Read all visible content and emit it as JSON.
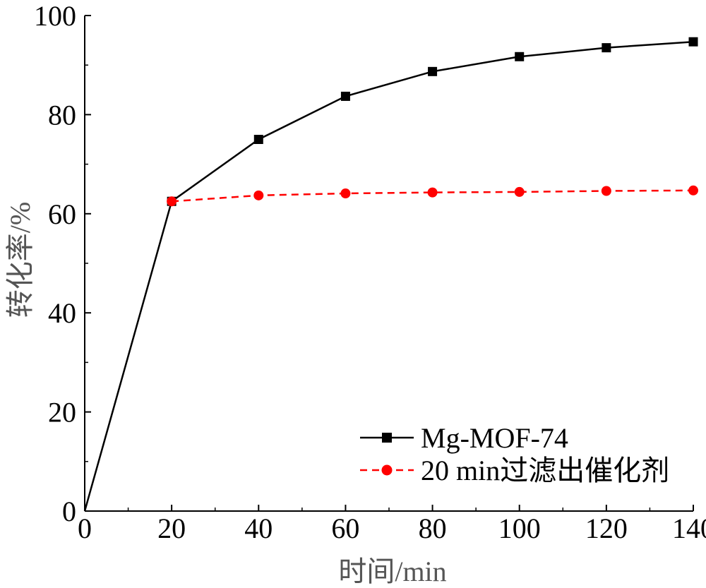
{
  "chart_data": {
    "type": "line",
    "title": "",
    "xlabel": "时间/min",
    "ylabel": "转化率/%",
    "xlim": [
      0,
      140
    ],
    "ylim": [
      0,
      100
    ],
    "x_ticks": [
      "0",
      "20",
      "40",
      "60",
      "80",
      "100",
      "120",
      "140"
    ],
    "y_ticks": [
      "0",
      "20",
      "40",
      "60",
      "80",
      "100"
    ],
    "grid": false,
    "legend_position": "bottom-right",
    "series": [
      {
        "name": "Mg-MOF-74",
        "color": "#000000",
        "line_style": "solid",
        "marker": "square",
        "x": [
          0,
          20,
          40,
          60,
          80,
          100,
          120,
          140
        ],
        "y": [
          0,
          62.5,
          75.0,
          83.7,
          88.7,
          91.7,
          93.5,
          94.7
        ]
      },
      {
        "name": "20 min过滤出催化剂",
        "color": "#ff0000",
        "line_style": "dashed",
        "marker": "circle",
        "x": [
          20,
          40,
          60,
          80,
          100,
          120,
          140
        ],
        "y": [
          62.5,
          63.7,
          64.1,
          64.3,
          64.4,
          64.6,
          64.7
        ]
      }
    ]
  }
}
